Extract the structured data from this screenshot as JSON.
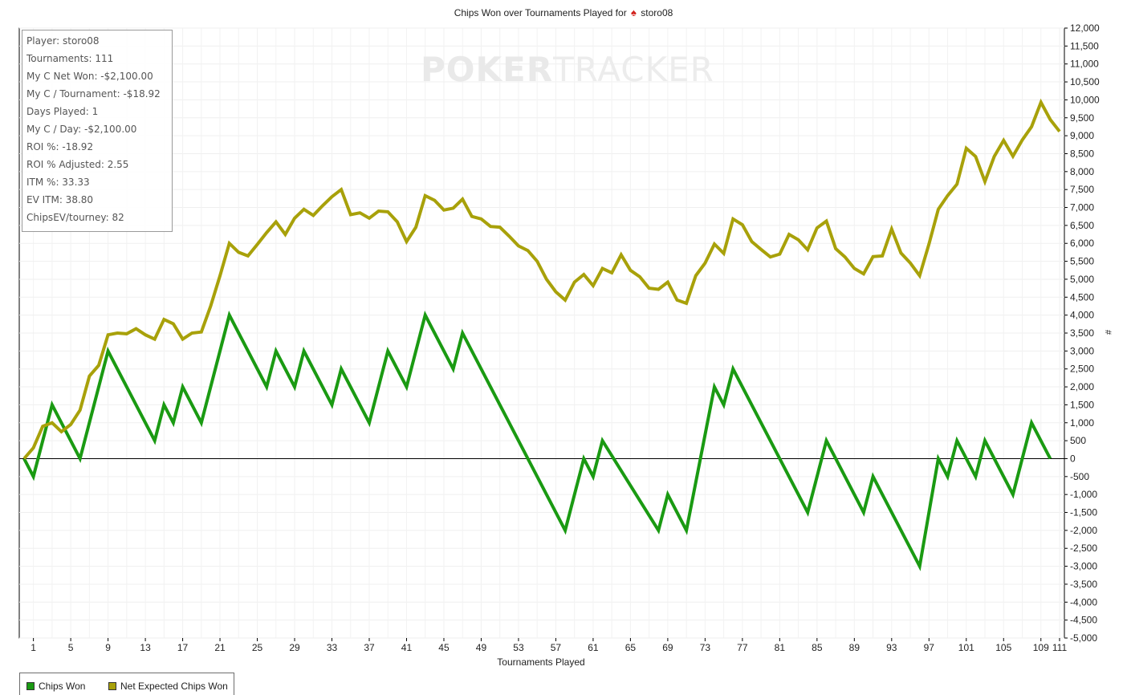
{
  "chart_data": {
    "type": "line",
    "title": "Chips Won over Tournaments Played for",
    "player_name": "storo08",
    "xlabel": "Tournaments Played",
    "ylabel": "#",
    "xlim": [
      0,
      111
    ],
    "ylim": [
      -5000,
      12000
    ],
    "y_tick_step": 500,
    "x_ticks": [
      "1",
      "5",
      "9",
      "13",
      "17",
      "21",
      "25",
      "29",
      "33",
      "37",
      "41",
      "45",
      "49",
      "53",
      "57",
      "61",
      "65",
      "69",
      "73",
      "77",
      "81",
      "85",
      "89",
      "93",
      "97",
      "101",
      "105",
      "109",
      "111"
    ],
    "y_axis_position": "right",
    "grid": true,
    "legend_position": "bottom-left",
    "series": [
      {
        "name": "Chips Won",
        "color": "#1a9a12",
        "points": [
          [
            0,
            0
          ],
          [
            1,
            -500
          ],
          [
            3,
            1500
          ],
          [
            6,
            0
          ],
          [
            9,
            3000
          ],
          [
            14,
            500
          ],
          [
            15,
            1500
          ],
          [
            16,
            1000
          ],
          [
            17,
            2000
          ],
          [
            19,
            1000
          ],
          [
            22,
            4000
          ],
          [
            26,
            2000
          ],
          [
            27,
            3000
          ],
          [
            29,
            2000
          ],
          [
            30,
            3000
          ],
          [
            33,
            1500
          ],
          [
            34,
            2500
          ],
          [
            37,
            1000
          ],
          [
            39,
            3000
          ],
          [
            41,
            2000
          ],
          [
            43,
            4000
          ],
          [
            46,
            2500
          ],
          [
            47,
            3500
          ],
          [
            58,
            -2000
          ],
          [
            60,
            0
          ],
          [
            61,
            -500
          ],
          [
            62,
            500
          ],
          [
            68,
            -2000
          ],
          [
            69,
            -1000
          ],
          [
            71,
            -2000
          ],
          [
            74,
            2000
          ],
          [
            75,
            1500
          ],
          [
            76,
            2500
          ],
          [
            84,
            -1500
          ],
          [
            86,
            500
          ],
          [
            90,
            -1500
          ],
          [
            91,
            -500
          ],
          [
            96,
            -3000
          ],
          [
            98,
            0
          ],
          [
            99,
            -500
          ],
          [
            100,
            500
          ],
          [
            102,
            -500
          ],
          [
            103,
            500
          ],
          [
            106,
            -1000
          ],
          [
            108,
            1000
          ],
          [
            110,
            0
          ]
        ]
      },
      {
        "name": "Net Expected Chips Won",
        "color": "#a8a10a",
        "points": [
          [
            0,
            0
          ],
          [
            1,
            300
          ],
          [
            2,
            900
          ],
          [
            3,
            1000
          ],
          [
            4,
            750
          ],
          [
            5,
            950
          ],
          [
            6,
            1350
          ],
          [
            7,
            2300
          ],
          [
            8,
            2600
          ],
          [
            9,
            3450
          ],
          [
            10,
            3500
          ],
          [
            11,
            3480
          ],
          [
            12,
            3620
          ],
          [
            13,
            3450
          ],
          [
            14,
            3330
          ],
          [
            15,
            3880
          ],
          [
            16,
            3760
          ],
          [
            17,
            3330
          ],
          [
            18,
            3500
          ],
          [
            19,
            3530
          ],
          [
            20,
            4250
          ],
          [
            21,
            5100
          ],
          [
            22,
            6000
          ],
          [
            23,
            5750
          ],
          [
            24,
            5650
          ],
          [
            25,
            5970
          ],
          [
            26,
            6300
          ],
          [
            27,
            6600
          ],
          [
            28,
            6250
          ],
          [
            29,
            6700
          ],
          [
            30,
            6950
          ],
          [
            31,
            6780
          ],
          [
            32,
            7050
          ],
          [
            33,
            7300
          ],
          [
            34,
            7500
          ],
          [
            35,
            6800
          ],
          [
            36,
            6850
          ],
          [
            37,
            6700
          ],
          [
            38,
            6900
          ],
          [
            39,
            6880
          ],
          [
            40,
            6600
          ],
          [
            41,
            6050
          ],
          [
            42,
            6450
          ],
          [
            43,
            7330
          ],
          [
            44,
            7200
          ],
          [
            45,
            6930
          ],
          [
            46,
            6980
          ],
          [
            47,
            7230
          ],
          [
            48,
            6750
          ],
          [
            49,
            6680
          ],
          [
            50,
            6470
          ],
          [
            51,
            6450
          ],
          [
            52,
            6200
          ],
          [
            53,
            5930
          ],
          [
            54,
            5800
          ],
          [
            55,
            5500
          ],
          [
            56,
            5000
          ],
          [
            57,
            4650
          ],
          [
            58,
            4420
          ],
          [
            59,
            4920
          ],
          [
            60,
            5130
          ],
          [
            61,
            4820
          ],
          [
            62,
            5300
          ],
          [
            63,
            5180
          ],
          [
            64,
            5680
          ],
          [
            65,
            5250
          ],
          [
            66,
            5070
          ],
          [
            67,
            4750
          ],
          [
            68,
            4720
          ],
          [
            69,
            4920
          ],
          [
            70,
            4420
          ],
          [
            71,
            4330
          ],
          [
            72,
            5100
          ],
          [
            73,
            5450
          ],
          [
            74,
            5980
          ],
          [
            75,
            5720
          ],
          [
            76,
            6680
          ],
          [
            77,
            6520
          ],
          [
            78,
            6050
          ],
          [
            79,
            5830
          ],
          [
            80,
            5620
          ],
          [
            81,
            5700
          ],
          [
            82,
            6250
          ],
          [
            83,
            6100
          ],
          [
            84,
            5820
          ],
          [
            85,
            6430
          ],
          [
            86,
            6620
          ],
          [
            87,
            5850
          ],
          [
            88,
            5620
          ],
          [
            89,
            5300
          ],
          [
            90,
            5150
          ],
          [
            91,
            5630
          ],
          [
            92,
            5650
          ],
          [
            93,
            6400
          ],
          [
            94,
            5730
          ],
          [
            95,
            5450
          ],
          [
            96,
            5100
          ],
          [
            97,
            5980
          ],
          [
            98,
            6950
          ],
          [
            99,
            7330
          ],
          [
            100,
            7650
          ],
          [
            101,
            8650
          ],
          [
            102,
            8420
          ],
          [
            103,
            7720
          ],
          [
            104,
            8420
          ],
          [
            105,
            8870
          ],
          [
            106,
            8430
          ],
          [
            107,
            8880
          ],
          [
            108,
            9250
          ],
          [
            109,
            9930
          ],
          [
            110,
            9450
          ],
          [
            111,
            9120
          ]
        ]
      }
    ]
  },
  "stats": [
    "Player: storo08",
    "Tournaments: 111",
    "My C Net Won: -$2,100.00",
    "My C / Tournament: -$18.92",
    "Days Played: 1",
    "My C / Day: -$2,100.00",
    "ROI %: -18.92",
    "ROI % Adjusted: 2.55",
    "ITM %: 33.33",
    "EV ITM: 38.80",
    "ChipsEV/tourney: 82"
  ],
  "watermark": {
    "part1": "POKER",
    "part2": "TRACKER"
  },
  "legend": {
    "chips_won": "Chips Won",
    "net_expected": "Net Expected Chips Won"
  }
}
